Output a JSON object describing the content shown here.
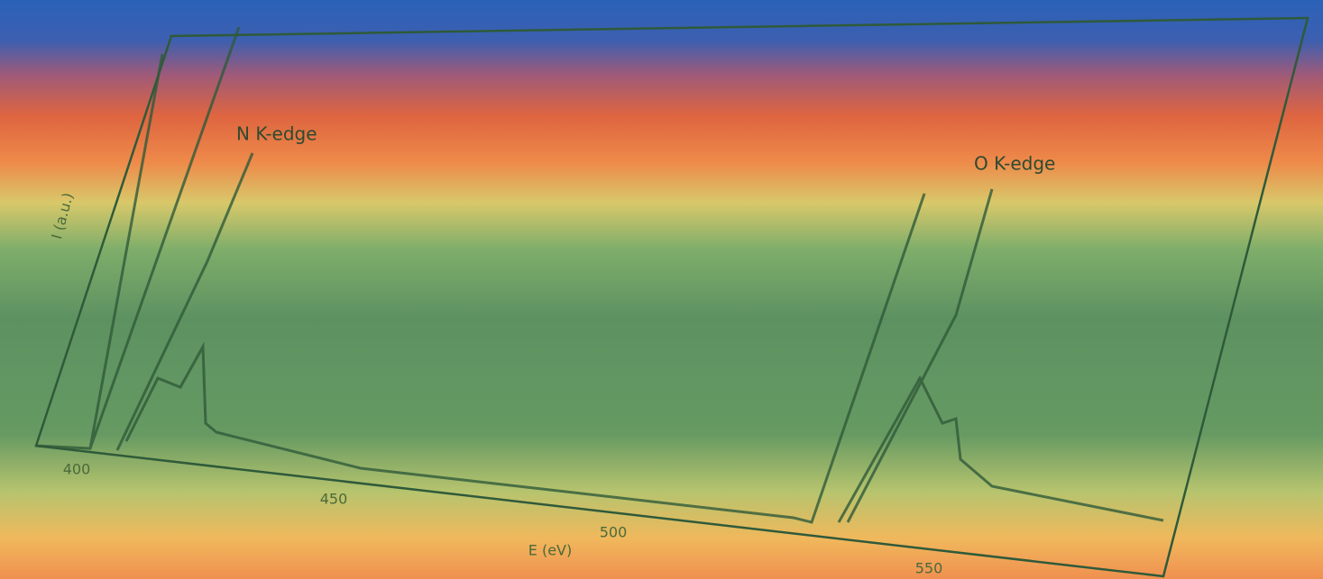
{
  "annotations": [
    "N K-edge",
    "O K-edge"
  ],
  "axes": {
    "x_label": "E (eV)",
    "y_label": "I (a.u.)",
    "x_tick_labels": [
      "400",
      "450",
      "500",
      "550"
    ]
  }
}
